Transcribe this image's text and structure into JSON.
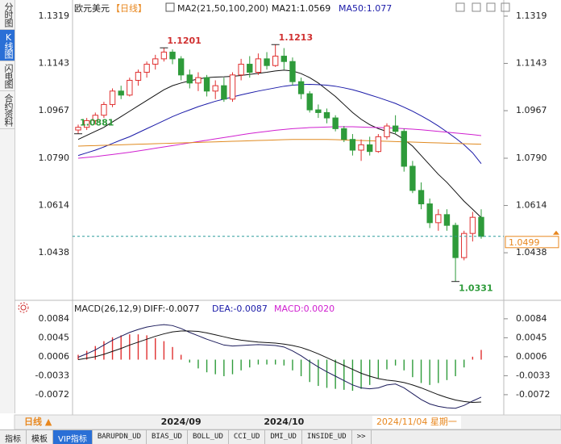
{
  "sidebar": {
    "tabs": [
      "分时图",
      "K线图",
      "闪电图",
      "合约资料"
    ]
  },
  "chart_data": [
    {
      "type": "candlestick",
      "title": "欧元美元",
      "subtitle": "【日线】",
      "legend_title": "MA2(21,50,100,200)",
      "ohlc": [
        [
          1.0895,
          1.0915,
          1.0881,
          1.0905
        ],
        [
          1.0905,
          1.094,
          1.0895,
          1.093
        ],
        [
          1.093,
          1.096,
          1.0915,
          1.095
        ],
        [
          1.095,
          1.1,
          1.094,
          1.099
        ],
        [
          1.099,
          1.105,
          1.098,
          1.104
        ],
        [
          1.104,
          1.106,
          1.101,
          1.1025
        ],
        [
          1.1025,
          1.109,
          1.102,
          1.108
        ],
        [
          1.108,
          1.112,
          1.106,
          1.111
        ],
        [
          1.111,
          1.115,
          1.109,
          1.114
        ],
        [
          1.114,
          1.1175,
          1.112,
          1.116
        ],
        [
          1.116,
          1.1201,
          1.115,
          1.1185
        ],
        [
          1.1185,
          1.1195,
          1.114,
          1.116
        ],
        [
          1.116,
          1.117,
          1.108,
          1.11
        ],
        [
          1.11,
          1.112,
          1.105,
          1.107
        ],
        [
          1.107,
          1.111,
          1.104,
          1.109
        ],
        [
          1.109,
          1.11,
          1.102,
          1.104
        ],
        [
          1.104,
          1.108,
          1.101,
          1.106
        ],
        [
          1.106,
          1.109,
          1.1,
          1.101
        ],
        [
          1.101,
          1.111,
          1.1,
          1.11
        ],
        [
          1.11,
          1.116,
          1.108,
          1.114
        ],
        [
          1.114,
          1.117,
          1.109,
          1.111
        ],
        [
          1.111,
          1.118,
          1.11,
          1.116
        ],
        [
          1.116,
          1.1185,
          1.112,
          1.1135
        ],
        [
          1.1135,
          1.1213,
          1.113,
          1.117
        ],
        [
          1.117,
          1.12,
          1.112,
          1.115
        ],
        [
          1.115,
          1.1165,
          1.106,
          1.1075
        ],
        [
          1.1075,
          1.109,
          1.101,
          1.103
        ],
        [
          1.103,
          1.104,
          1.096,
          1.097
        ],
        [
          1.097,
          1.099,
          1.094,
          1.096
        ],
        [
          1.096,
          1.0975,
          1.092,
          1.094
        ],
        [
          1.094,
          1.095,
          1.089,
          1.09
        ],
        [
          1.09,
          1.091,
          1.085,
          1.086
        ],
        [
          1.086,
          1.088,
          1.08,
          1.082
        ],
        [
          1.082,
          1.086,
          1.078,
          1.084
        ],
        [
          1.084,
          1.087,
          1.08,
          1.0815
        ],
        [
          1.0815,
          1.088,
          1.081,
          1.087
        ],
        [
          1.087,
          1.092,
          1.086,
          1.091
        ],
        [
          1.091,
          1.095,
          1.088,
          1.089
        ],
        [
          1.089,
          1.09,
          1.074,
          1.076
        ],
        [
          1.076,
          1.078,
          1.066,
          1.067
        ],
        [
          1.067,
          1.07,
          1.06,
          1.062
        ],
        [
          1.062,
          1.064,
          1.053,
          1.055
        ],
        [
          1.055,
          1.06,
          1.052,
          1.058
        ],
        [
          1.058,
          1.06,
          1.052,
          1.054
        ],
        [
          1.054,
          1.055,
          1.0331,
          1.042
        ],
        [
          1.042,
          1.052,
          1.041,
          1.051
        ],
        [
          1.051,
          1.059,
          1.048,
          1.057
        ],
        [
          1.057,
          1.06,
          1.049,
          1.0499
        ]
      ],
      "up_color": "#e03030",
      "down_color": "#2e9b3a",
      "series": [
        {
          "name": "MA21:1.0569",
          "color": "#111111",
          "values": [
            1.086,
            1.0875,
            1.089,
            1.0905,
            1.0925,
            1.0945,
            1.0965,
            1.0985,
            1.1005,
            1.1025,
            1.1045,
            1.106,
            1.107,
            1.1078,
            1.1085,
            1.109,
            1.1092,
            1.1093,
            1.1095,
            1.1098,
            1.1102,
            1.1106,
            1.111,
            1.1115,
            1.1118,
            1.1115,
            1.1105,
            1.109,
            1.107,
            1.1045,
            1.102,
            1.099,
            1.096,
            1.0935,
            1.0915,
            1.09,
            1.089,
            1.088,
            1.086,
            1.0835,
            1.08,
            1.0765,
            1.073,
            1.07,
            1.0665,
            1.063,
            1.06,
            1.0569
          ]
        },
        {
          "name": "MA50:1.077",
          "color": "#1a1aa8",
          "values": [
            1.08,
            1.081,
            1.082,
            1.0832,
            1.0845,
            1.0858,
            1.087,
            1.0885,
            1.09,
            1.0915,
            1.093,
            1.0945,
            1.0958,
            1.097,
            1.0982,
            1.0992,
            1.1002,
            1.101,
            1.1018,
            1.1026,
            1.1033,
            1.104,
            1.1046,
            1.1052,
            1.1058,
            1.1062,
            1.1064,
            1.1065,
            1.1064,
            1.1062,
            1.1058,
            1.1052,
            1.1045,
            1.1036,
            1.1026,
            1.1016,
            1.1005,
            1.0994,
            1.098,
            1.0965,
            1.0948,
            1.093,
            1.091,
            1.0888,
            1.0865,
            1.084,
            1.081,
            1.077
          ]
        },
        {
          "color": "#d020d0",
          "values": [
            1.079,
            1.0793,
            1.0796,
            1.08,
            1.0804,
            1.0808,
            1.0812,
            1.0817,
            1.0822,
            1.0827,
            1.0832,
            1.0837,
            1.0842,
            1.0847,
            1.0852,
            1.0857,
            1.0862,
            1.0867,
            1.0872,
            1.0877,
            1.0882,
            1.0886,
            1.089,
            1.0894,
            1.0897,
            1.09,
            1.0902,
            1.0904,
            1.0905,
            1.0906,
            1.0907,
            1.0907,
            1.0907,
            1.0906,
            1.0905,
            1.0904,
            1.0903,
            1.0902,
            1.09,
            1.0898,
            1.0896,
            1.0893,
            1.089,
            1.0887,
            1.0884,
            1.0881,
            1.0878,
            1.0874
          ]
        },
        {
          "color": "#e08a20",
          "values": [
            1.0835,
            1.0836,
            1.0837,
            1.0838,
            1.0839,
            1.084,
            1.0841,
            1.0842,
            1.0843,
            1.0844,
            1.0845,
            1.0846,
            1.0847,
            1.0848,
            1.0849,
            1.085,
            1.0851,
            1.0852,
            1.0853,
            1.0854,
            1.0855,
            1.0856,
            1.0857,
            1.0858,
            1.0859,
            1.086,
            1.086,
            1.086,
            1.086,
            1.086,
            1.0859,
            1.0858,
            1.0857,
            1.0856,
            1.0855,
            1.0854,
            1.0853,
            1.0852,
            1.0851,
            1.085,
            1.0849,
            1.0848,
            1.0847,
            1.0846,
            1.0845,
            1.0844,
            1.0843,
            1.0842
          ]
        }
      ],
      "ylim": [
        1.0267,
        1.1355
      ],
      "yticks": [
        1.1319,
        1.1143,
        1.0967,
        {
          "value": 1.079,
          "label": "1.0790"
        },
        1.0614,
        1.0438
      ],
      "x_labels": [
        "2024/09",
        "2024/10",
        "2024/11/04 星期一"
      ]
    },
    {
      "type": "macd",
      "title": "MACD(26,12,9)",
      "series": [
        {
          "name": "DIFF:-0.0077",
          "color": "#1c1c5c",
          "values": [
            0.0005,
            0.0012,
            0.002,
            0.003,
            0.004,
            0.0048,
            0.0056,
            0.0062,
            0.0067,
            0.007,
            0.0072,
            0.007,
            0.0064,
            0.0056,
            0.0049,
            0.0042,
            0.0036,
            0.003,
            0.0028,
            0.0029,
            0.003,
            0.0031,
            0.003,
            0.0029,
            0.0026,
            0.0018,
            0.0008,
            -0.0004,
            -0.0015,
            -0.0025,
            -0.0034,
            -0.0043,
            -0.0052,
            -0.0058,
            -0.006,
            -0.0058,
            -0.0052,
            -0.005,
            -0.0058,
            -0.007,
            -0.0082,
            -0.0091,
            -0.0096,
            -0.0099,
            -0.01,
            -0.0094,
            -0.0085,
            -0.0077
          ]
        },
        {
          "name": "DEA:-0.0087",
          "color": "#111111",
          "values": [
            0,
            0.0003,
            0.0006,
            0.0011,
            0.0017,
            0.0023,
            0.003,
            0.0036,
            0.0042,
            0.0048,
            0.0053,
            0.0057,
            0.0059,
            0.0059,
            0.0058,
            0.0055,
            0.0051,
            0.0047,
            0.0043,
            0.004,
            0.0038,
            0.0036,
            0.0035,
            0.0034,
            0.0032,
            0.0029,
            0.0025,
            0.0019,
            0.0012,
            0.0004,
            -0.0004,
            -0.0012,
            -0.002,
            -0.0028,
            -0.0034,
            -0.0039,
            -0.0042,
            -0.0044,
            -0.0047,
            -0.0052,
            -0.0058,
            -0.0065,
            -0.0072,
            -0.0078,
            -0.0083,
            -0.0086,
            -0.0088,
            -0.0087
          ]
        },
        {
          "name": "MACD:0.0020",
          "color": "#e03030",
          "negative_color": "#2e9b3a",
          "values": [
            0.001,
            0.0018,
            0.0028,
            0.0038,
            0.0046,
            0.005,
            0.0052,
            0.0052,
            0.005,
            0.0044,
            0.0038,
            0.0026,
            0.001,
            -0.0006,
            -0.0018,
            -0.0026,
            -0.003,
            -0.0034,
            -0.003,
            -0.0022,
            -0.0016,
            -0.001,
            -0.001,
            -0.001,
            -0.0012,
            -0.0022,
            -0.0034,
            -0.0046,
            -0.0054,
            -0.0058,
            -0.006,
            -0.0062,
            -0.0064,
            -0.006,
            -0.0052,
            -0.0038,
            -0.002,
            -0.0012,
            -0.0022,
            -0.0036,
            -0.0048,
            -0.0052,
            -0.0048,
            -0.0042,
            -0.0034,
            -0.0016,
            0.0006,
            0.002
          ]
        }
      ],
      "ylim": [
        -0.0107,
        0.0112
      ],
      "yticks": [
        0.0084,
        0.0045,
        0.0006,
        -0.0033,
        -0.0072
      ]
    }
  ],
  "footer": {
    "period": "日线 ▲",
    "tabs": [
      "指标",
      "模板",
      "VIP指标",
      "BARUPDN_UD",
      "BIAS_UD",
      "BOLL_UD",
      "CCI_UD",
      "DMI_UD",
      "INSIDE_UD",
      ">>"
    ]
  }
}
